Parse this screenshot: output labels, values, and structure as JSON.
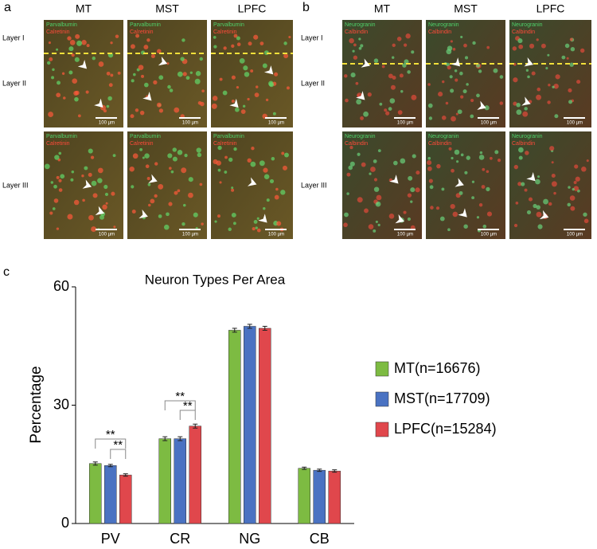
{
  "panel_a": {
    "label": "a",
    "columns": [
      "MT",
      "MST",
      "LPFC"
    ],
    "rows": [
      "Layer I",
      "Layer II",
      "Layer III"
    ],
    "markers": [
      "Parvalbumin",
      "Calretinin"
    ],
    "scale_bar": "100 µm"
  },
  "panel_b": {
    "label": "b",
    "columns": [
      "MT",
      "MST",
      "LPFC"
    ],
    "rows": [
      "Layer I",
      "Layer II",
      "Layer III"
    ],
    "markers": [
      "Neurogranin",
      "Calbindin"
    ],
    "scale_bar": "100 µm"
  },
  "chart_data": {
    "type": "bar",
    "panel_label": "c",
    "title": "Neuron Types Per Area",
    "ylabel": "Percentage",
    "categories": [
      "PV",
      "CR",
      "NG",
      "CB"
    ],
    "series": [
      {
        "name": "MT(n=16676)",
        "color": "#7dbb42",
        "values": [
          15.2,
          21.5,
          49,
          14
        ],
        "errors": [
          0.4,
          0.5,
          0.5,
          0.3
        ]
      },
      {
        "name": "MST(n=17709)",
        "color": "#4a72c2",
        "values": [
          14.7,
          21.5,
          50,
          13.5
        ],
        "errors": [
          0.3,
          0.5,
          0.5,
          0.3
        ]
      },
      {
        "name": "LPFC(n=15284)",
        "color": "#e0474c",
        "values": [
          12.3,
          24.7,
          49.5,
          13.3
        ],
        "errors": [
          0.3,
          0.5,
          0.5,
          0.3
        ]
      }
    ],
    "ylim": [
      0,
      60
    ],
    "yticks": [
      0,
      30,
      60
    ],
    "annotations": [
      "**",
      "**",
      "**",
      "**"
    ]
  }
}
